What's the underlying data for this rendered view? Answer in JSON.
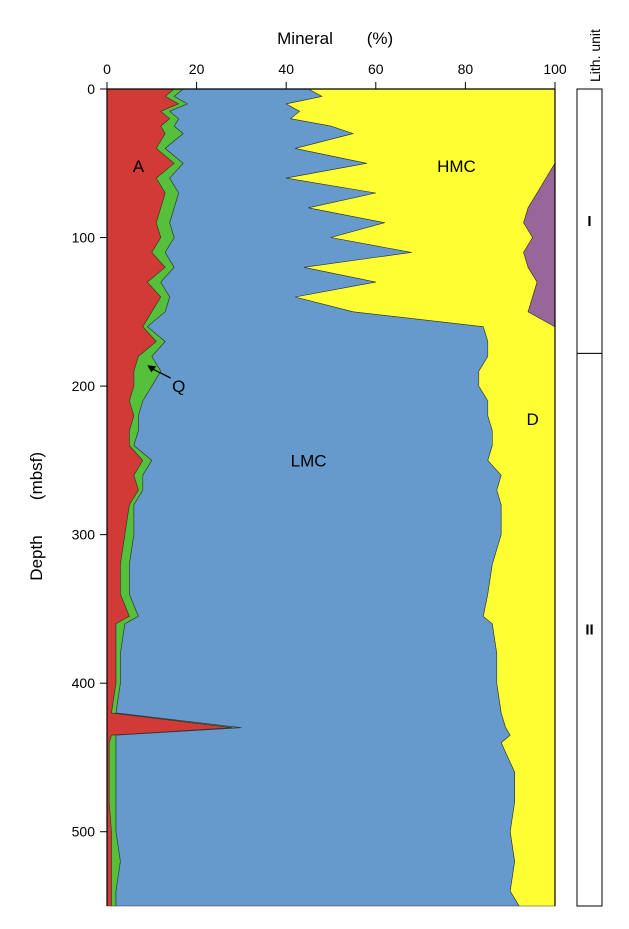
{
  "chart_data": {
    "type": "area",
    "stacked": true,
    "orientation": "vertical-depth",
    "xlabel": "Mineral",
    "xunit": "(%)",
    "ylabel": "Depth",
    "yunit": "(mbsf)",
    "xlim": [
      0,
      100
    ],
    "ylim": [
      0,
      550
    ],
    "xticks": [
      0,
      20,
      40,
      60,
      80,
      100
    ],
    "yticks": [
      0,
      100,
      200,
      300,
      400,
      500
    ],
    "grid": false,
    "series_order": [
      "A",
      "Q",
      "LMC",
      "D",
      "HMC"
    ],
    "colors": {
      "A": "#d23a35",
      "Q": "#55c13a",
      "LMC": "#6699cc",
      "HMC": "#ffff33",
      "D": "#996699"
    },
    "boundaries": {
      "depth": [
        0,
        5,
        10,
        15,
        20,
        25,
        30,
        40,
        50,
        60,
        70,
        80,
        90,
        100,
        110,
        120,
        130,
        140,
        150,
        160,
        170,
        180,
        190,
        200,
        210,
        220,
        230,
        240,
        250,
        260,
        270,
        280,
        300,
        320,
        340,
        355,
        360,
        380,
        400,
        420,
        430,
        435,
        440,
        460,
        480,
        500,
        520,
        540,
        550
      ],
      "A_top": [
        15,
        13,
        16,
        12,
        14,
        12,
        13,
        11,
        15,
        11,
        13,
        12,
        11,
        12,
        10,
        13,
        9,
        12,
        10,
        8,
        11,
        7,
        6,
        6,
        5,
        6,
        5,
        5,
        8,
        6,
        7,
        5,
        4,
        3,
        3,
        5,
        2,
        2,
        2,
        1,
        28,
        1,
        0.5,
        0.5,
        0.5,
        1,
        1,
        1,
        1
      ],
      "Q_top": [
        17,
        15,
        18,
        14,
        16,
        15,
        17,
        13,
        17,
        14,
        16,
        15,
        14,
        15,
        13,
        15,
        12,
        14,
        13,
        9,
        13,
        10,
        12,
        10,
        8,
        7,
        7,
        6,
        10,
        8,
        8,
        6,
        6,
        5,
        5,
        7,
        4,
        3,
        3,
        2,
        30,
        2,
        2,
        2,
        2,
        2,
        3,
        2,
        2
      ],
      "LMC_top": [
        45,
        48,
        40,
        43,
        41,
        50,
        55,
        42,
        58,
        40,
        60,
        45,
        62,
        50,
        68,
        44,
        60,
        42,
        55,
        84,
        85,
        85,
        83,
        83,
        85,
        85,
        86,
        86,
        85,
        88,
        87,
        88,
        88,
        86,
        85,
        84,
        86,
        87,
        87,
        88,
        89,
        90,
        88,
        91,
        91,
        90,
        91,
        90,
        92
      ],
      "D_top": [
        100,
        100,
        100,
        100,
        100,
        100,
        100,
        100,
        100,
        98,
        96,
        94,
        93,
        95,
        93,
        94,
        96,
        95,
        94,
        100,
        100,
        100,
        100,
        100,
        100,
        100,
        100,
        100,
        100,
        100,
        100,
        100,
        100,
        100,
        100,
        100,
        100,
        100,
        100,
        100,
        100,
        100,
        100,
        100,
        100,
        100,
        100,
        100,
        100
      ]
    },
    "annotations": [
      {
        "text": "A",
        "x": 7,
        "y": 52
      },
      {
        "text": "HMC",
        "x": 78,
        "y": 52
      },
      {
        "text": "Q",
        "x": 16,
        "y": 200,
        "arrow_to": {
          "x": 9,
          "y": 186
        }
      },
      {
        "text": "LMC",
        "x": 45,
        "y": 250
      },
      {
        "text": "D",
        "x": 95,
        "y": 222
      }
    ],
    "lithology": {
      "header": "Lith. unit",
      "units": [
        {
          "name": "I",
          "top": 0,
          "bottom": 178
        },
        {
          "name": "II",
          "top": 178,
          "bottom": 550
        }
      ]
    }
  }
}
